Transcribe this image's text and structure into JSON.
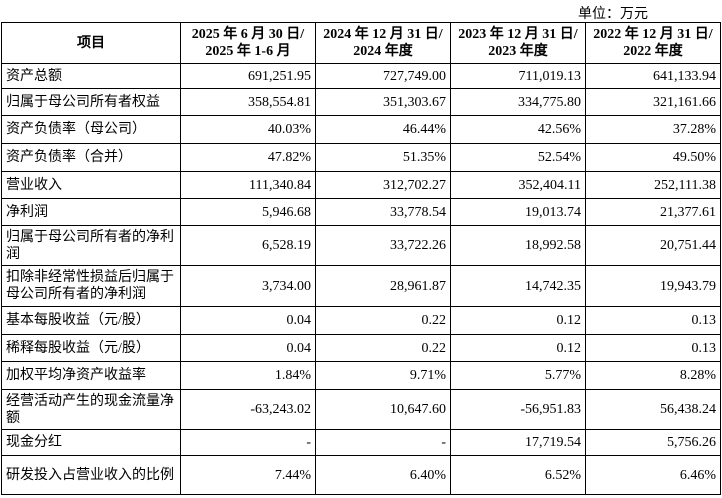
{
  "unit": "单位：万元",
  "table": {
    "header": [
      [
        "项目"
      ],
      [
        "2025 年 6 月 30 日/",
        "2025 年 1-6 月"
      ],
      [
        "2024 年 12 月 31 日/",
        "2024 年度"
      ],
      [
        "2023 年 12 月 31 日/",
        "2023 年度"
      ],
      [
        "2022 年 12 月 31 日/",
        "2022 年度"
      ]
    ],
    "rows": [
      [
        "资产总额",
        "691,251.95",
        "727,749.00",
        "711,019.13",
        "641,133.94"
      ],
      [
        "归属于母公司所有者权益",
        "358,554.81",
        "351,303.67",
        "334,775.80",
        "321,161.66"
      ],
      [
        "资产负债率（母公司）",
        "40.03%",
        "46.44%",
        "42.56%",
        "37.28%"
      ],
      [
        "资产负债率（合并）",
        "47.82%",
        "51.35%",
        "52.54%",
        "49.50%"
      ],
      [
        "营业收入",
        "111,340.84",
        "312,702.27",
        "352,404.11",
        "252,111.38"
      ],
      [
        "净利润",
        "5,946.68",
        "33,778.54",
        "19,013.74",
        "21,377.61"
      ],
      [
        "归属于母公司所有者的净利润",
        "6,528.19",
        "33,722.26",
        "18,992.58",
        "20,751.44"
      ],
      [
        "扣除非经常性损益后归属于母公司所有者的净利润",
        "3,734.00",
        "28,961.87",
        "14,742.35",
        "19,943.79"
      ],
      [
        "基本每股收益（元/股）",
        "0.04",
        "0.22",
        "0.12",
        "0.13"
      ],
      [
        "稀释每股收益（元/股）",
        "0.04",
        "0.22",
        "0.12",
        "0.13"
      ],
      [
        "加权平均净资产收益率",
        "1.84%",
        "9.71%",
        "5.77%",
        "8.28%"
      ],
      [
        "经营活动产生的现金流量净额",
        "-63,243.02",
        "10,647.60",
        "-56,951.83",
        "56,438.24"
      ],
      [
        "现金分红",
        "-",
        "-",
        "17,719.54",
        "5,756.26"
      ],
      [
        "研发投入占营业收入的比例",
        "7.44%",
        "6.40%",
        "6.52%",
        "6.46%"
      ]
    ]
  }
}
